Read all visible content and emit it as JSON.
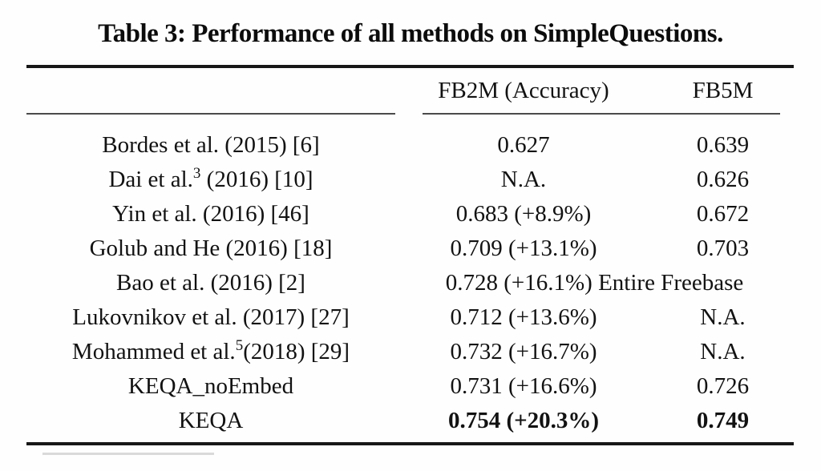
{
  "caption": "Table 3: Performance of all methods on SimpleQuestions.",
  "table": {
    "header": {
      "method_label": "",
      "fb2m_label": "FB2M (Accuracy)",
      "fb5m_label": "FB5M"
    },
    "rows": [
      {
        "method": "Bordes et al. (2015) [6]",
        "fb2m": "0.627",
        "fb5m": "0.639"
      },
      {
        "method": "Dai et al.",
        "method_sup": "3",
        "method_rest": " (2016) [10]",
        "fb2m": "N.A.",
        "fb5m": "0.626"
      },
      {
        "method": "Yin et al. (2016) [46]",
        "fb2m": "0.683 (+8.9%)",
        "fb5m": "0.672"
      },
      {
        "method": "Golub and He (2016) [18]",
        "fb2m": "0.709 (+13.1%)",
        "fb5m": "0.703"
      },
      {
        "method": "Bao et al. (2016) [2]",
        "fb2m": "0.728 (+16.1%)",
        "fb5m": "Entire Freebase"
      },
      {
        "method": "Lukovnikov et al. (2017) [27]",
        "fb2m": "0.712 (+13.6%)",
        "fb5m": "N.A."
      },
      {
        "method": "Mohammed et al.",
        "method_sup": "5",
        "method_rest": "(2018) [29]",
        "fb2m": "0.732 (+16.7%)",
        "fb5m": "N.A."
      },
      {
        "method": "KEQA_noEmbed",
        "fb2m": "0.731 (+16.6%)",
        "fb5m": "0.726"
      },
      {
        "method": "KEQA",
        "fb2m": "0.754 (+20.3%)",
        "fb5m": "0.749"
      }
    ],
    "colors": {
      "text": "#121212",
      "thick_rule": "#171717",
      "mid_rule": "#4a4a4a",
      "footnote_fragment": "#d9d9d9",
      "background": "#fefefe"
    }
  }
}
